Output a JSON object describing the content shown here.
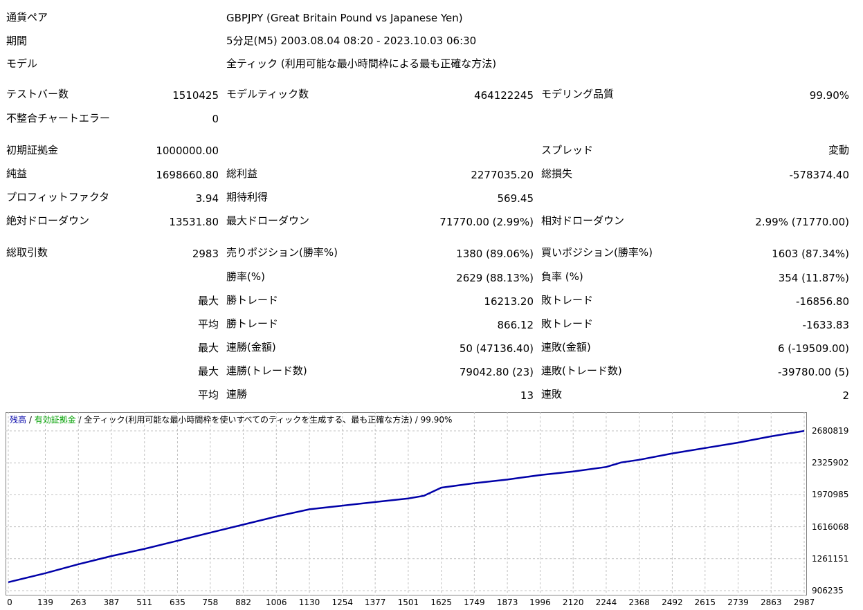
{
  "header": {
    "symbol_label": "通貨ペア",
    "symbol_value": "GBPJPY (Great Britain Pound vs Japanese Yen)",
    "period_label": "期間",
    "period_value": "5分足(M5) 2003.08.04 08:20 - 2023.10.03 06:30",
    "model_label": "モデル",
    "model_value": "全ティック (利用可能な最小時間枠による最も正確な方法)"
  },
  "stats": {
    "bars_label": "テストバー数",
    "bars_value": "1510425",
    "ticks_label": "モデルティック数",
    "ticks_value": "464122245",
    "quality_label": "モデリング品質",
    "quality_value": "99.90%",
    "mismatch_label": "不整合チャートエラー",
    "mismatch_value": "0",
    "deposit_label": "初期証拠金",
    "deposit_value": "1000000.00",
    "spread_label": "スプレッド",
    "spread_value": "変動",
    "net_label": "純益",
    "net_value": "1698660.80",
    "gross_profit_label": "総利益",
    "gross_profit_value": "2277035.20",
    "gross_loss_label": "総損失",
    "gross_loss_value": "-578374.40",
    "pf_label": "プロフィットファクタ",
    "pf_value": "3.94",
    "payoff_label": "期待利得",
    "payoff_value": "569.45",
    "abs_dd_label": "絶対ドローダウン",
    "abs_dd_value": "13531.80",
    "max_dd_label": "最大ドローダウン",
    "max_dd_value": "71770.00 (2.99%)",
    "rel_dd_label": "相対ドローダウン",
    "rel_dd_value": "2.99% (71770.00)",
    "trades_label": "総取引数",
    "trades_value": "2983",
    "short_label": "売りポジション(勝率%)",
    "short_value": "1380 (89.06%)",
    "long_label": "買いポジション(勝率%)",
    "long_value": "1603 (87.34%)",
    "win_label": "勝率(%)",
    "win_value": "2629 (88.13%)",
    "loss_label": "負率 (%)",
    "loss_value": "354 (11.87%)",
    "max_prefix": "最大",
    "avg_prefix": "平均",
    "largest_win_label": "勝トレード",
    "largest_win_value": "16213.20",
    "largest_loss_label": "敗トレード",
    "largest_loss_value": "-16856.80",
    "avg_win_label": "勝トレード",
    "avg_win_value": "866.12",
    "avg_loss_label": "敗トレード",
    "avg_loss_value": "-1633.83",
    "max_consec_win_amt_label": "連勝(金額)",
    "max_consec_win_amt_value": "50 (47136.40)",
    "max_consec_loss_amt_label": "連敗(金額)",
    "max_consec_loss_amt_value": "6 (-19509.00)",
    "max_consec_win_cnt_label": "連勝(トレード数)",
    "max_consec_win_cnt_value": "79042.80 (23)",
    "max_consec_loss_cnt_label": "連敗(トレード数)",
    "max_consec_loss_cnt_value": "-39780.00 (5)",
    "avg_consec_win_label": "連勝",
    "avg_consec_win_value": "13",
    "avg_consec_loss_label": "連敗",
    "avg_consec_loss_value": "2"
  },
  "chart_legend": {
    "balance": "残高",
    "sep1": " / ",
    "equity": "有効証拠金",
    "sep2": " / ",
    "model": "全ティック(利用可能な最小時間枠を使いすべてのティックを生成する、最も正確な方法)",
    "sep3": " / ",
    "quality": "99.90%"
  },
  "colors": {
    "balance": "#0000a8",
    "equity": "#00a000",
    "grid": "#c0c0c0",
    "frame": "#808080"
  },
  "chart_data": {
    "type": "line",
    "series": [
      {
        "name": "残高",
        "x": [
          0,
          139,
          263,
          387,
          511,
          635,
          758,
          882,
          1006,
          1130,
          1254,
          1377,
          1501,
          1560,
          1625,
          1749,
          1873,
          1996,
          2120,
          2244,
          2300,
          2368,
          2492,
          2615,
          2739,
          2863,
          2987
        ],
        "y": [
          1000000,
          1100000,
          1200000,
          1290000,
          1370000,
          1460000,
          1550000,
          1640000,
          1730000,
          1810000,
          1850000,
          1890000,
          1930000,
          1960000,
          2050000,
          2100000,
          2140000,
          2190000,
          2230000,
          2280000,
          2330000,
          2360000,
          2430000,
          2490000,
          2550000,
          2620000,
          2680000
        ]
      }
    ],
    "xlim": [
      0,
      2987
    ],
    "ylim": [
      906235,
      2680819
    ],
    "x_ticks": [
      "0",
      "139",
      "263",
      "387",
      "511",
      "635",
      "758",
      "882",
      "1006",
      "1130",
      "1254",
      "1377",
      "1501",
      "1625",
      "1749",
      "1873",
      "1996",
      "2120",
      "2244",
      "2368",
      "2492",
      "2615",
      "2739",
      "2863",
      "2987"
    ],
    "y_ticks": [
      "2680819",
      "2325902",
      "1970985",
      "1616068",
      "1261151",
      "906235"
    ],
    "grid": true
  }
}
